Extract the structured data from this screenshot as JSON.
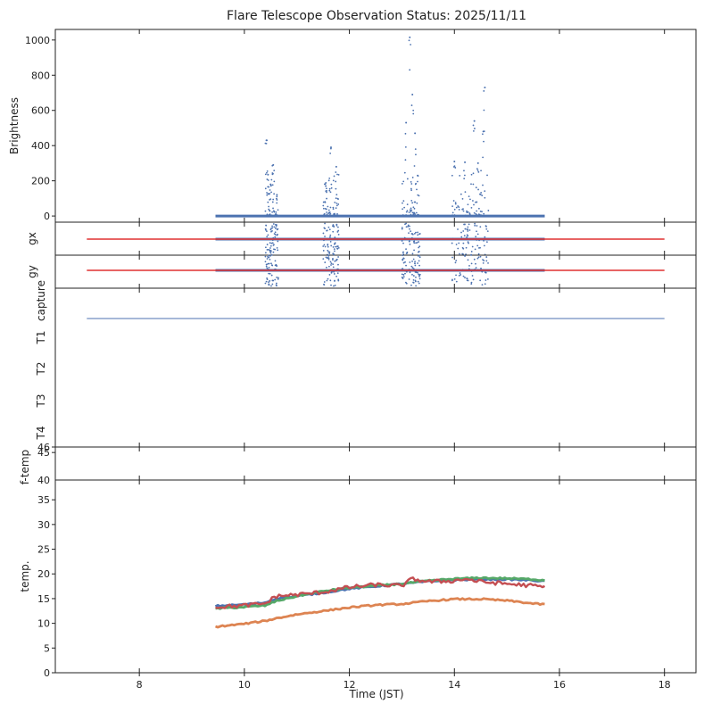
{
  "chart_data": {
    "type": "scatter",
    "title": "Flare Telescope Observation Status: 2025/11/11",
    "xlabel": "Time (JST)",
    "xlim": [
      6.4,
      18.6
    ],
    "xticks": [
      8,
      10,
      12,
      14,
      16,
      18
    ],
    "observation_window": [
      9.45,
      15.72
    ],
    "panels": [
      {
        "id": "brightness",
        "ylabel": "Brightness",
        "ylim": [
          -35,
          1060
        ],
        "yticks": [
          0,
          200,
          400,
          600,
          800,
          1000
        ],
        "series": [
          {
            "name": "brightness",
            "color": "#4c72b0",
            "baseline": 0,
            "spikes": [
              {
                "x": 10.42,
                "y": 430
              },
              {
                "x": 10.45,
                "y": 235
              },
              {
                "x": 10.5,
                "y": 180
              },
              {
                "x": 10.55,
                "y": 290
              },
              {
                "x": 10.62,
                "y": 120
              },
              {
                "x": 11.55,
                "y": 170
              },
              {
                "x": 11.65,
                "y": 390
              },
              {
                "x": 11.75,
                "y": 280
              },
              {
                "x": 13.08,
                "y": 530
              },
              {
                "x": 13.15,
                "y": 1015
              },
              {
                "x": 13.2,
                "y": 690
              },
              {
                "x": 13.25,
                "y": 470
              },
              {
                "x": 13.3,
                "y": 230
              },
              {
                "x": 14.0,
                "y": 310
              },
              {
                "x": 14.2,
                "y": 305
              },
              {
                "x": 14.38,
                "y": 540
              },
              {
                "x": 14.45,
                "y": 300
              },
              {
                "x": 14.55,
                "y": 480
              },
              {
                "x": 14.58,
                "y": 730
              }
            ]
          }
        ]
      },
      {
        "id": "gx",
        "ylabel": "gx",
        "reference_line": {
          "color": "#e03030",
          "x": [
            7.0,
            18.0
          ]
        },
        "series": [
          {
            "name": "gx",
            "color": "#4c72b0"
          }
        ]
      },
      {
        "id": "gy",
        "ylabel": "gy",
        "reference_line": {
          "color": "#e03030",
          "x": [
            7.0,
            18.0
          ]
        },
        "series": [
          {
            "name": "gy",
            "color": "#4c72b0"
          }
        ]
      },
      {
        "id": "capture",
        "ylabels": [
          "capture",
          "T1",
          "T2",
          "T3",
          "T4"
        ],
        "series": [
          {
            "name": "capture",
            "color": "#4c72b0",
            "x": [
              7.0,
              18.0
            ]
          }
        ]
      },
      {
        "id": "ftemp",
        "ylabel": "f-temp",
        "ylim": [
          40,
          46
        ],
        "yticks": [
          45,
          46
        ],
        "edge_label": "40",
        "series": []
      },
      {
        "id": "temp",
        "ylabel": "temp.",
        "ylim": [
          0,
          39
        ],
        "yticks": [
          0,
          5,
          10,
          15,
          20,
          25,
          30,
          35
        ],
        "series": [
          {
            "name": "blue",
            "color": "#4c72b0",
            "x": [
              9.45,
              10.0,
              10.4,
              10.6,
              11.0,
              11.5,
              12.0,
              12.5,
              13.0,
              13.5,
              14.0,
              14.5,
              15.0,
              15.5,
              15.72
            ],
            "y": [
              13.5,
              13.8,
              14.2,
              15.0,
              15.5,
              16.2,
              17.0,
              17.5,
              18.0,
              18.5,
              18.8,
              18.9,
              18.9,
              18.7,
              18.5
            ]
          },
          {
            "name": "green",
            "color": "#55a868",
            "x": [
              9.45,
              10.0,
              10.4,
              10.6,
              11.0,
              11.5,
              12.0,
              12.5,
              13.0,
              13.5,
              14.0,
              14.5,
              15.0,
              15.5,
              15.72
            ],
            "y": [
              13.0,
              13.3,
              13.6,
              14.5,
              15.5,
              16.5,
              17.2,
              17.6,
              18.0,
              18.6,
              19.0,
              19.2,
              19.1,
              18.9,
              18.7
            ]
          },
          {
            "name": "red",
            "color": "#c44e52",
            "x": [
              9.45,
              10.0,
              10.4,
              10.6,
              11.0,
              11.5,
              12.0,
              12.5,
              13.0,
              13.2,
              13.5,
              14.0,
              14.2,
              14.5,
              15.0,
              15.5,
              15.72
            ],
            "y": [
              13.3,
              13.6,
              14.0,
              15.5,
              15.8,
              16.3,
              17.3,
              17.8,
              17.6,
              19.0,
              18.4,
              18.6,
              19.0,
              18.4,
              18.0,
              17.6,
              17.3
            ]
          },
          {
            "name": "orange",
            "color": "#dd8452",
            "x": [
              9.45,
              10.0,
              10.4,
              10.6,
              11.0,
              11.5,
              12.0,
              12.5,
              13.0,
              13.5,
              14.0,
              14.5,
              15.0,
              15.5,
              15.72
            ],
            "y": [
              9.3,
              9.9,
              10.5,
              11.0,
              11.8,
              12.5,
              13.2,
              13.7,
              13.9,
              14.5,
              14.9,
              14.9,
              14.6,
              14.0,
              13.8
            ]
          }
        ]
      }
    ]
  }
}
